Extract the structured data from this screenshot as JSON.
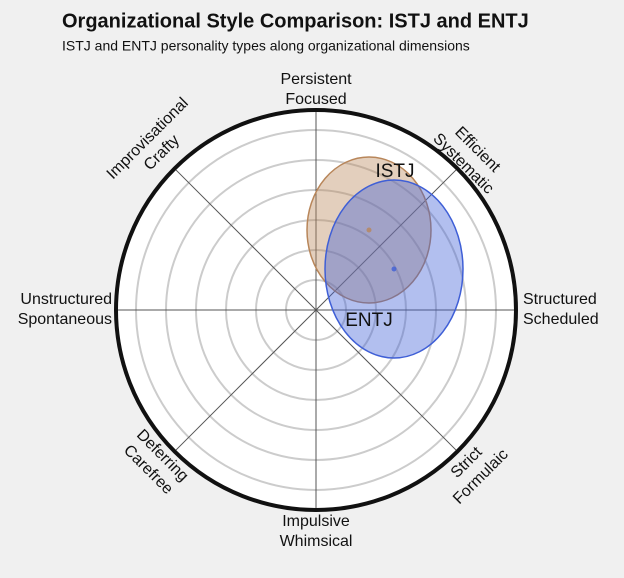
{
  "chart_data": {
    "type": "ellipse",
    "title": "Organizational Style Comparison: ISTJ and ENTJ",
    "subtitle": "ISTJ and ENTJ personality types along organizational dimensions",
    "direction_labels": [
      [
        "Persistent",
        "Focused"
      ],
      [
        "Efficient",
        "Systematic"
      ],
      [
        "Structured",
        "Scheduled"
      ],
      [
        "Strict",
        "Formulaic"
      ],
      [
        "Impulsive",
        "Whimsical"
      ],
      [
        "Deferring",
        "Carefree"
      ],
      [
        "Unstructured",
        "Spontaneous"
      ],
      [
        "Improvisational",
        "Crafty"
      ]
    ],
    "rlim": [
      0,
      100
    ],
    "rings": [
      15,
      30,
      45,
      60,
      75,
      90
    ],
    "series": [
      {
        "name": "ISTJ",
        "color": "#b8865a",
        "center": [
          26.5,
          40
        ],
        "radii": [
          31,
          36.5
        ]
      },
      {
        "name": "ENTJ",
        "color": "#3f5fd6",
        "center": [
          39,
          20.5
        ],
        "radii": [
          34.5,
          44.5
        ]
      }
    ]
  }
}
